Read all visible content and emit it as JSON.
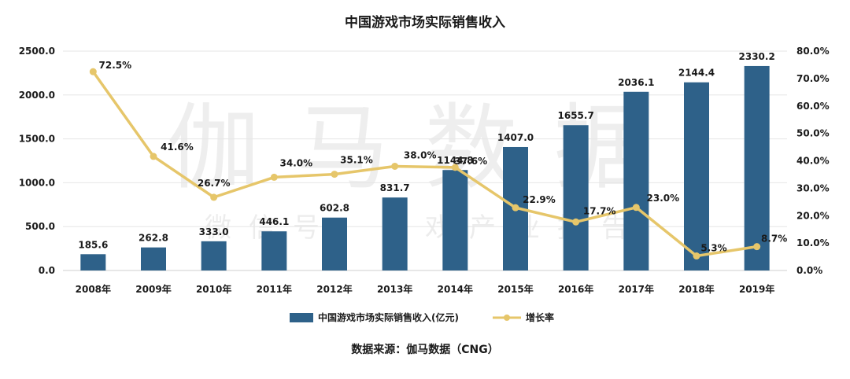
{
  "chart_data": {
    "type": "bar",
    "title": "中国游戏市场实际销售收入",
    "categories": [
      "2008年",
      "2009年",
      "2010年",
      "2011年",
      "2012年",
      "2013年",
      "2014年",
      "2015年",
      "2016年",
      "2017年",
      "2018年",
      "2019年"
    ],
    "series": [
      {
        "name": "中国游戏市场实际销售收入(亿元)",
        "type": "bar",
        "axis": "left",
        "color": "#2e6189",
        "values": [
          185.6,
          262.8,
          333.0,
          446.1,
          602.8,
          831.7,
          1144.8,
          1407.0,
          1655.7,
          2036.1,
          2144.4,
          2330.2
        ],
        "labels": [
          "185.6",
          "262.8",
          "333.0",
          "446.1",
          "602.8",
          "831.7",
          "1144.8",
          "1407.0",
          "1655.7",
          "2036.1",
          "2144.4",
          "2330.2"
        ]
      },
      {
        "name": "增长率",
        "type": "line",
        "axis": "right",
        "color": "#e6c66a",
        "values": [
          72.5,
          41.6,
          26.7,
          34.0,
          35.1,
          38.0,
          37.6,
          22.9,
          17.7,
          23.0,
          5.3,
          8.7
        ],
        "labels": [
          "72.5%",
          "41.6%",
          "26.7%",
          "34.0%",
          "35.1%",
          "38.0%",
          "37.6%",
          "22.9%",
          "17.7%",
          "23.0%",
          "5.3%",
          "8.7%"
        ]
      }
    ],
    "y_left": {
      "lim": [
        0,
        2500
      ],
      "ticks": [
        0,
        500,
        1000,
        1500,
        2000,
        2500
      ],
      "tick_labels": [
        "0.0",
        "500.0",
        "1000.0",
        "1500.0",
        "2000.0",
        "2500.0"
      ]
    },
    "y_right": {
      "lim": [
        0,
        80
      ],
      "ticks": [
        0,
        10,
        20,
        30,
        40,
        50,
        60,
        70,
        80
      ],
      "tick_labels": [
        "0.0%",
        "10.0%",
        "20.0%",
        "30.0%",
        "40.0%",
        "50.0%",
        "60.0%",
        "70.0%",
        "80.0%"
      ]
    },
    "grid": true,
    "legend_position": "bottom"
  },
  "source": "数据来源：伽马数据（CNG）",
  "watermark": {
    "main": "伽马数据",
    "sub": "微信号：游戏产业报告"
  }
}
